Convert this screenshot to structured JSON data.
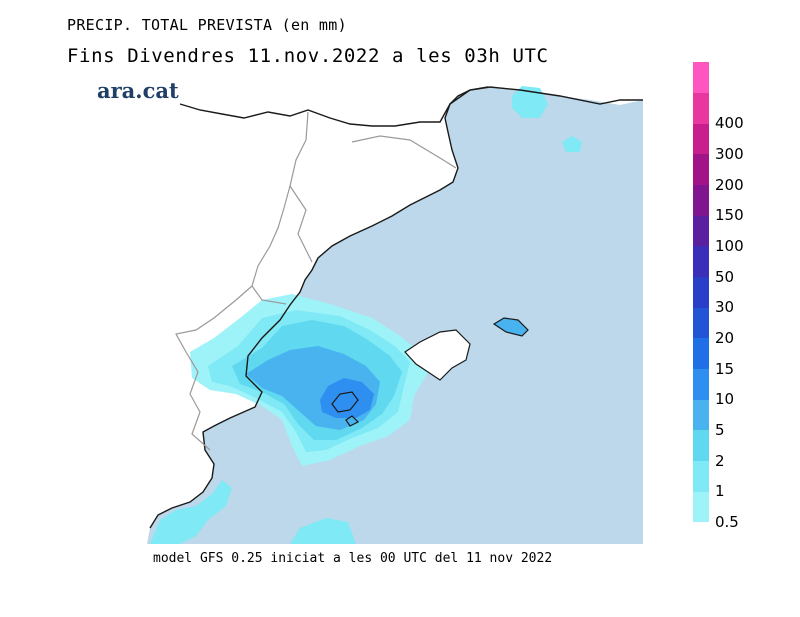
{
  "header": {
    "title": "PRECIP. TOTAL PREVISTA (en mm)",
    "subtitle": "Fins Divendres 11.nov.2022 a les 03h UTC",
    "brand": "ara.cat"
  },
  "footer": {
    "model_info": "model GFS 0.25 iniciat a les 00 UTC del 11 nov 2022"
  },
  "legend": {
    "levels": [
      {
        "label": "0.5",
        "color": "#9ef3f9"
      },
      {
        "label": "1",
        "color": "#7fe9f5"
      },
      {
        "label": "2",
        "color": "#5fd8f0"
      },
      {
        "label": "5",
        "color": "#49b3f0"
      },
      {
        "label": "10",
        "color": "#2f8ff0"
      },
      {
        "label": "15",
        "color": "#1f6fe6"
      },
      {
        "label": "20",
        "color": "#2255d6"
      },
      {
        "label": "30",
        "color": "#2a3fc8"
      },
      {
        "label": "50",
        "color": "#3a2fb8"
      },
      {
        "label": "100",
        "color": "#5a209f"
      },
      {
        "label": "150",
        "color": "#80158f"
      },
      {
        "label": "200",
        "color": "#a01488"
      },
      {
        "label": "300",
        "color": "#c81f8d"
      },
      {
        "label": "400",
        "color": "#e8379f"
      },
      {
        "label": "",
        "color": "#ff55c0"
      }
    ]
  },
  "map": {
    "sea_color": "#bcd8ea",
    "land_color": "#ffffff",
    "coast_color": "#1a1a1a",
    "border_color": "#9a9a9a"
  }
}
